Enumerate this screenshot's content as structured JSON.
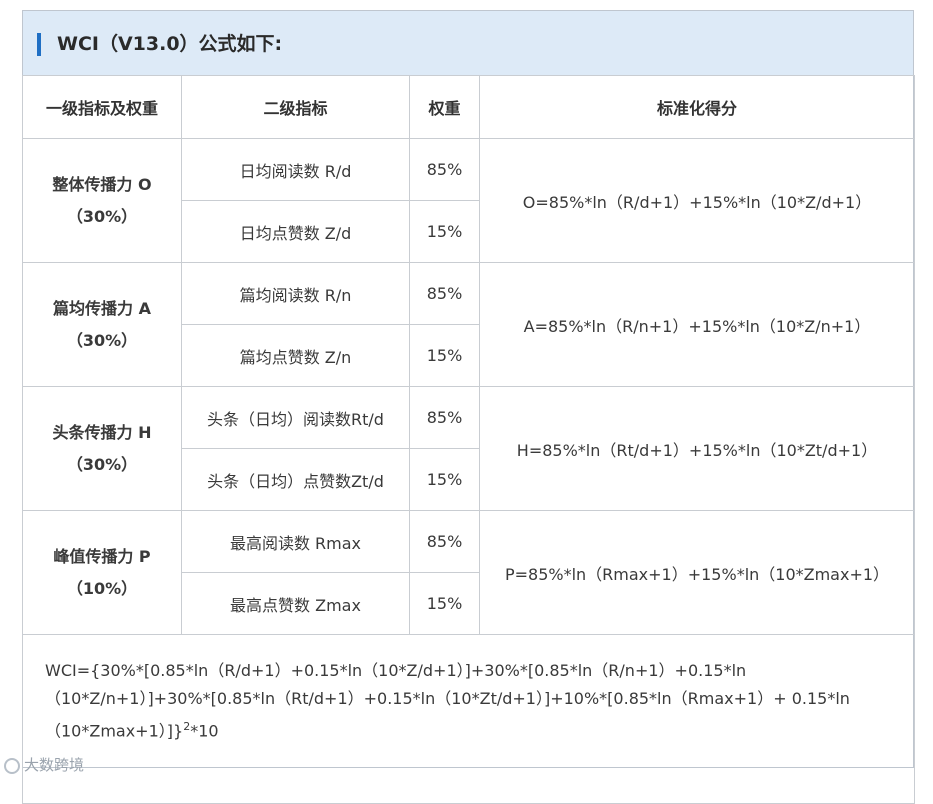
{
  "title": "WCI（V13.0）公式如下:",
  "headers": [
    "一级指标及权重",
    "二级指标",
    "权重",
    "标准化得分"
  ],
  "groups": [
    {
      "name": "整体传播力 O",
      "weight": "（30%）",
      "formula": "O=85%*ln（R/d+1）+15%*ln（10*Z/d+1）",
      "subs": [
        {
          "label": "日均阅读数 R/d",
          "weight": "85%"
        },
        {
          "label": "日均点赞数 Z/d",
          "weight": "15%"
        }
      ]
    },
    {
      "name": "篇均传播力 A",
      "weight": "（30%）",
      "formula": "A=85%*ln（R/n+1）+15%*ln（10*Z/n+1）",
      "subs": [
        {
          "label": "篇均阅读数 R/n",
          "weight": "85%"
        },
        {
          "label": "篇均点赞数 Z/n",
          "weight": "15%"
        }
      ]
    },
    {
      "name": "头条传播力 H",
      "weight": "（30%）",
      "formula": "H=85%*ln（Rt/d+1）+15%*ln（10*Zt/d+1）",
      "subs": [
        {
          "label": "头条（日均）阅读数Rt/d",
          "weight": "85%"
        },
        {
          "label": "头条（日均）点赞数Zt/d",
          "weight": "15%"
        }
      ]
    },
    {
      "name": "峰值传播力 P",
      "weight": "（10%）",
      "formula": "P=85%*ln（Rmax+1）+15%*ln（10*Zmax+1）",
      "subs": [
        {
          "label": "最高阅读数 Rmax",
          "weight": "85%"
        },
        {
          "label": "最高点赞数 Zmax",
          "weight": "15%"
        }
      ]
    }
  ],
  "summary": {
    "main": "WCI={30%*[0.85*ln（R/d+1）+0.15*ln（10*Z/d+1）]+30%*[0.85*ln（R/n+1）+0.15*ln（10*Z/n+1）]+30%*[0.85*ln（Rt/d+1）+0.15*ln（10*Zt/d+1）]+10%*[0.85*ln（Rmax+1）+ 0.15*ln（10*Zmax+1）]}",
    "exponent": "2",
    "tail": "*10"
  },
  "watermark": "大数跨境"
}
